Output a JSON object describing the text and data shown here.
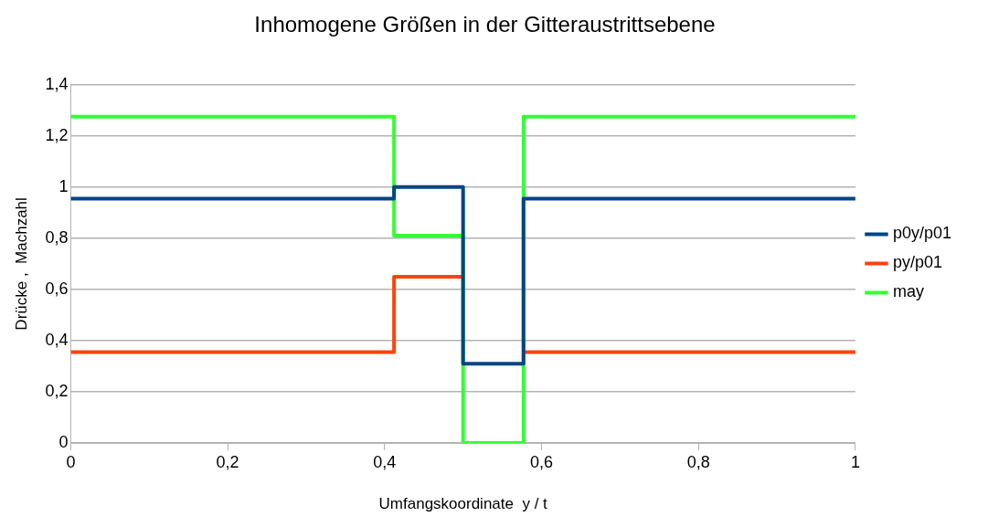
{
  "chart_data": {
    "type": "step",
    "title": "Inhomogene Größen in der Gitteraustrittsebene",
    "xlabel": "Umfangskoordinate  y / t",
    "ylabel": "Drücke ,  Machzahl",
    "x": [
      0,
      0.412,
      0.5,
      0.577,
      1
    ],
    "series": [
      {
        "name": "p0y/p01",
        "color": "#004586",
        "values": [
          0.955,
          1,
          0.31,
          0.955,
          0.955
        ]
      },
      {
        "name": "py/p01",
        "color": "#ff420e",
        "values": [
          0.355,
          0.65,
          null,
          0.355,
          0.355
        ]
      },
      {
        "name": "may",
        "color": "#33ff33",
        "values": [
          1.275,
          0.81,
          0,
          1.275,
          1.275
        ]
      }
    ],
    "xlim": [
      0,
      1
    ],
    "xticks": [
      0,
      {
        "value": 0.2,
        "label": "0,2"
      },
      {
        "value": 0.4,
        "label": "0,4"
      },
      {
        "value": 0.6,
        "label": "0,6"
      },
      {
        "value": 0.8,
        "label": "0,8"
      },
      1
    ],
    "ylim": [
      0,
      1.4
    ],
    "yticks": [
      0,
      {
        "value": 0.2,
        "label": "0,2"
      },
      {
        "value": 0.4,
        "label": "0,4"
      },
      {
        "value": 0.6,
        "label": "0,6"
      },
      {
        "value": 0.8,
        "label": "0,8"
      },
      1,
      {
        "value": 1.2,
        "label": "1,2"
      },
      {
        "value": 1.4,
        "label": "1,4"
      }
    ],
    "grid": "y",
    "legend": "right",
    "marker": "none",
    "line_style": "solid"
  }
}
